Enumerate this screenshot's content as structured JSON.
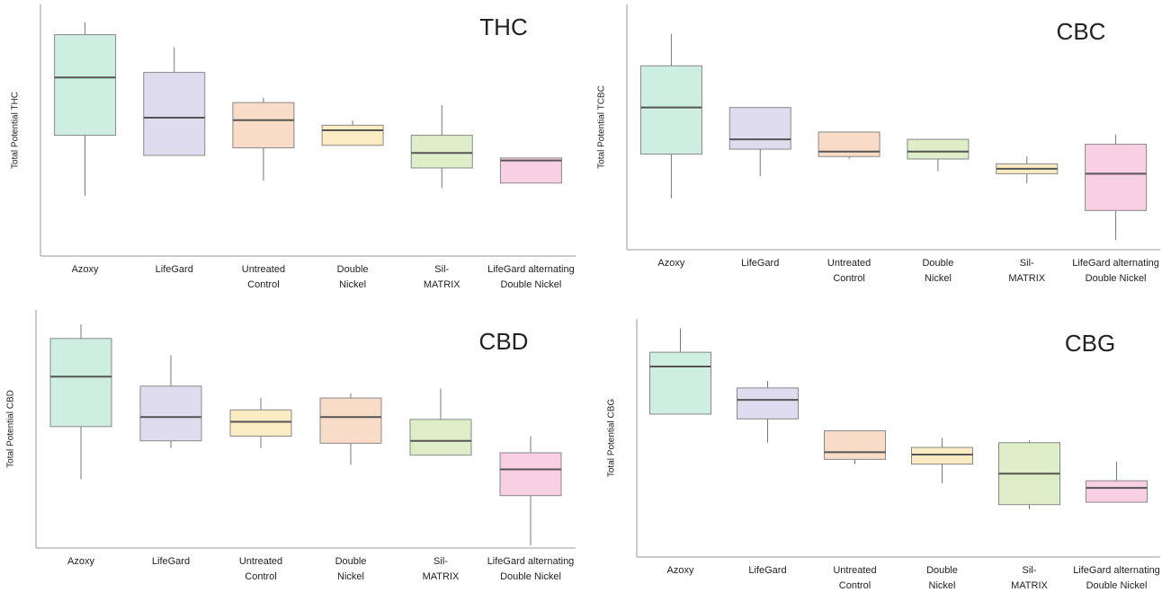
{
  "chart_data": [
    {
      "type": "box",
      "title": "THC",
      "y_label": "Total Potential THC",
      "categories": [
        [
          "Azoxy"
        ],
        [
          "LifeGard"
        ],
        [
          "Untreated",
          "Control"
        ],
        [
          "Double",
          "Nickel"
        ],
        [
          "Sil-",
          "MATRIX"
        ],
        [
          "LifeGard alternating",
          "Double Nickel"
        ]
      ],
      "colors": [
        "#cdeee0",
        "#dedcee",
        "#f9dcc8",
        "#fcecc4",
        "#ddeec9",
        "#f9cfe3"
      ],
      "whisker_low": [
        24,
        40,
        30,
        44,
        27,
        29
      ],
      "q1": [
        48,
        40,
        43,
        44,
        35,
        29
      ],
      "median": [
        71,
        55,
        54,
        50,
        41,
        38
      ],
      "q3": [
        88,
        73,
        61,
        52,
        48,
        39
      ],
      "whisker_high": [
        93,
        83,
        63,
        54,
        60,
        39
      ],
      "ylim": [
        0,
        100
      ]
    },
    {
      "type": "box",
      "title": "CBC",
      "y_label": "Total Potential TCBC",
      "categories": [
        [
          "Azoxy"
        ],
        [
          "LifeGard"
        ],
        [
          "Untreated",
          "Control"
        ],
        [
          "Double",
          "Nickel"
        ],
        [
          "Sil-",
          "MATRIX"
        ],
        [
          "LifeGard alternating",
          "Double Nickel"
        ]
      ],
      "colors": [
        "#cdeee0",
        "#dedcee",
        "#f9dcc8",
        "#ddeec9",
        "#fcecc4",
        "#f9cfe3"
      ],
      "whisker_low": [
        21,
        30,
        37,
        32,
        27,
        4
      ],
      "q1": [
        39,
        41,
        38,
        37,
        31,
        16
      ],
      "median": [
        58,
        45,
        40,
        40,
        33,
        31
      ],
      "q3": [
        75,
        58,
        48,
        45,
        35,
        43
      ],
      "whisker_high": [
        88,
        58,
        48,
        45,
        38,
        47
      ],
      "ylim": [
        0,
        100
      ]
    },
    {
      "type": "box",
      "title": "CBD",
      "y_label": "Total Potential CBD",
      "categories": [
        [
          "Azoxy"
        ],
        [
          "LifeGard"
        ],
        [
          "Untreated",
          "Control"
        ],
        [
          "Double",
          "Nickel"
        ],
        [
          "Sil-",
          "MATRIX"
        ],
        [
          "LifeGard alternating",
          "Double Nickel"
        ]
      ],
      "colors": [
        "#cdeee0",
        "#dedcee",
        "#fcecc4",
        "#f9dcc8",
        "#ddeec9",
        "#f9cfe3"
      ],
      "whisker_low": [
        29,
        42,
        42,
        35,
        39,
        1
      ],
      "q1": [
        51,
        45,
        47,
        44,
        39,
        22
      ],
      "median": [
        72,
        55,
        53,
        55,
        45,
        33
      ],
      "q3": [
        88,
        68,
        58,
        63,
        54,
        40
      ],
      "whisker_high": [
        94,
        81,
        63,
        65,
        67,
        47
      ],
      "ylim": [
        0,
        100
      ]
    },
    {
      "type": "box",
      "title": "CBG",
      "y_label": "Total Potential CBG",
      "categories": [
        [
          "Azoxy"
        ],
        [
          "LifeGard"
        ],
        [
          "Untreated",
          "Control"
        ],
        [
          "Double",
          "Nickel"
        ],
        [
          "Sil-",
          "MATRIX"
        ],
        [
          "LifeGard alternating",
          "Double Nickel"
        ]
      ],
      "colors": [
        "#cdeee0",
        "#dedcee",
        "#f9dcc8",
        "#fcecc4",
        "#ddeec9",
        "#f9cfe3"
      ],
      "whisker_low": [
        60,
        48,
        39,
        31,
        20,
        23
      ],
      "q1": [
        60,
        58,
        41,
        39,
        22,
        23
      ],
      "median": [
        80,
        66,
        44,
        43,
        35,
        29
      ],
      "q3": [
        86,
        71,
        53,
        46,
        48,
        32
      ],
      "whisker_high": [
        96,
        74,
        53,
        50,
        49,
        40
      ],
      "ylim": [
        0,
        100
      ]
    }
  ]
}
